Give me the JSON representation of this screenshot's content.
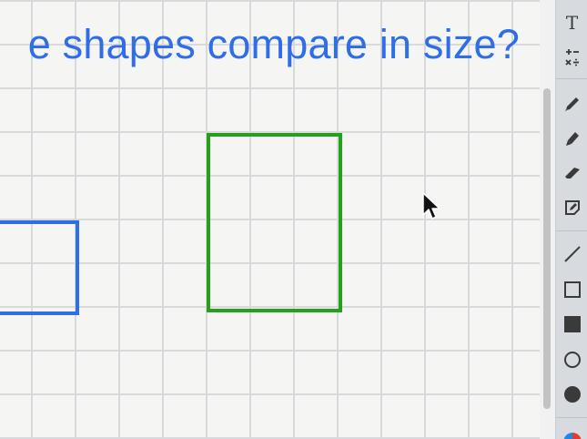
{
  "canvas": {
    "question": "e shapes compare in size?"
  },
  "toolbar": {
    "text_tool_label": "T",
    "tools": [
      "text-tool",
      "math-tool",
      "pen-tool",
      "highlighter-tool",
      "eraser-tool",
      "sticky-note-tool",
      "line-tool",
      "rectangle-tool",
      "filled-rectangle-tool",
      "circle-tool",
      "filled-circle-tool",
      "color-picker"
    ]
  },
  "colors": {
    "question_text": "#2f6ee6",
    "blue_shape": "#2f6ee6",
    "green_shape": "#24a01d",
    "grid_line": "#d9d9db",
    "canvas_bg": "#f5f5f4",
    "toolbar_bg": "#d7dbe0"
  }
}
